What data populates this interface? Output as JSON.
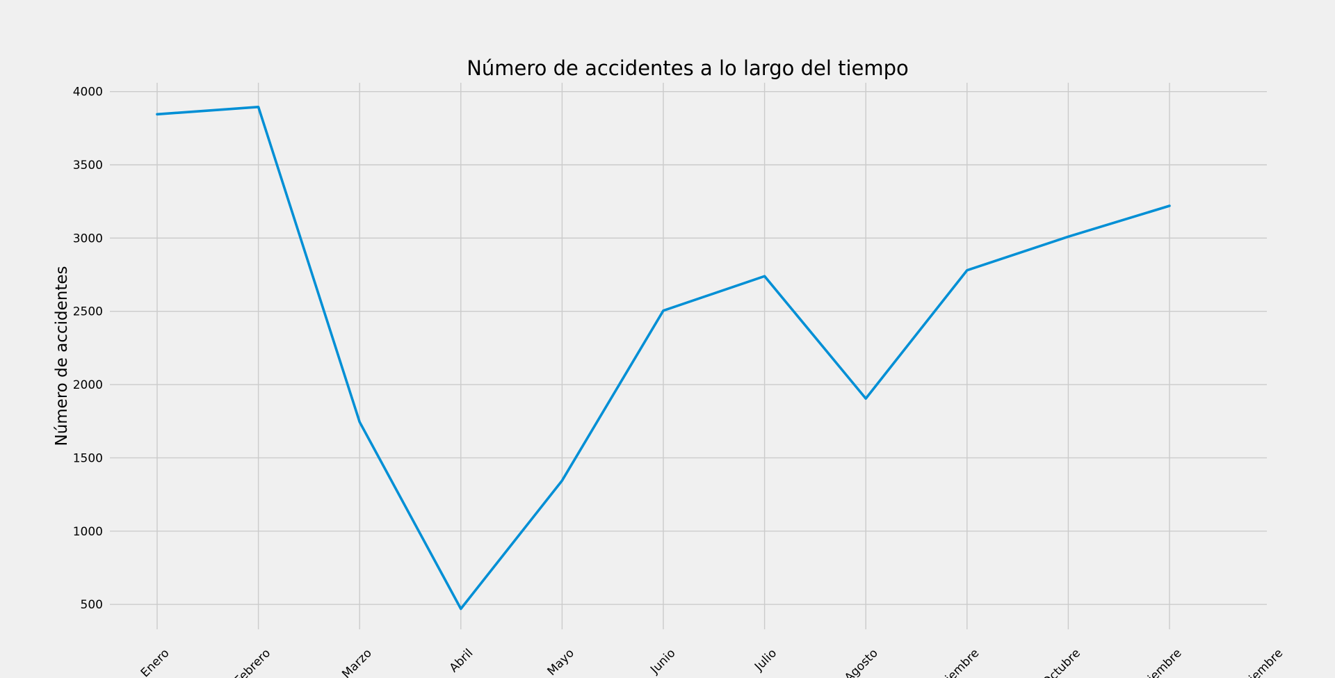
{
  "chart_data": {
    "type": "line",
    "title": "Número de accidentes a lo largo del tiempo",
    "xlabel": "",
    "ylabel": "Número de accidentes",
    "categories": [
      "Enero",
      "Febrero",
      "Marzo",
      "Abril",
      "Mayo",
      "Junio",
      "Julio",
      "Agosto",
      "Septiembre",
      "Octubre",
      "Noviembre",
      "Diciembre"
    ],
    "series": [
      {
        "name": "",
        "color": "#008fd5",
        "values": [
          3845,
          3895,
          1745,
          470,
          1345,
          2505,
          2740,
          1905,
          2780,
          3010,
          3220,
          null
        ]
      }
    ],
    "yticks": [
      500,
      1000,
      1500,
      2000,
      2500,
      3000,
      3500,
      4000
    ],
    "ylim": [
      330,
      4060
    ],
    "grid": true,
    "legend": "none",
    "background": "#f0f0f0"
  }
}
